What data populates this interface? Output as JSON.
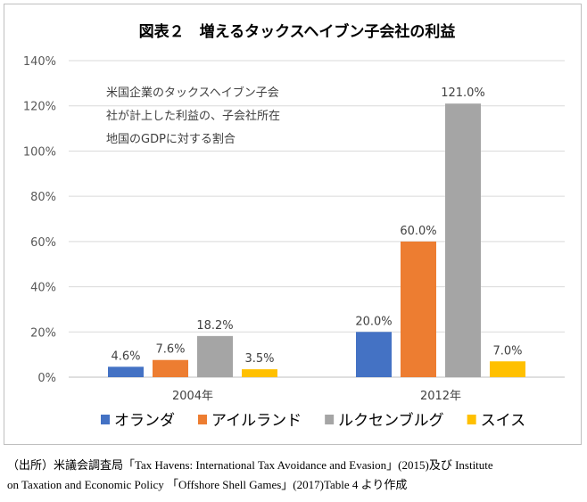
{
  "chart_data": {
    "type": "bar",
    "title": "図表２　増えるタックスヘイブン子会社の利益",
    "annotation": [
      "米国企業のタックスヘイブン子会",
      "社が計上した利益の、子会社所在",
      "地国のGDPに対する割合"
    ],
    "categories": [
      "2004年",
      "2012年"
    ],
    "series": [
      {
        "name": "オランダ",
        "color": "#4472c4",
        "values": [
          4.6,
          20.0
        ],
        "labels": [
          "4.6%",
          "20.0%"
        ]
      },
      {
        "name": "アイルランド",
        "color": "#ed7d31",
        "values": [
          7.6,
          60.0
        ],
        "labels": [
          "7.6%",
          "60.0%"
        ]
      },
      {
        "name": "ルクセンブルグ",
        "color": "#a5a5a5",
        "values": [
          18.2,
          121.0
        ],
        "labels": [
          "18.2%",
          "121.0%"
        ]
      },
      {
        "name": "スイス",
        "color": "#ffc000",
        "values": [
          3.5,
          7.0
        ],
        "labels": [
          "3.5%",
          "7.0%"
        ]
      }
    ],
    "y_ticks": [
      "0%",
      "20%",
      "40%",
      "60%",
      "80%",
      "100%",
      "120%",
      "140%"
    ],
    "ylim": [
      0,
      140
    ],
    "grid": true,
    "legend_position": "bottom"
  },
  "source": {
    "line1": "（出所）米議会調査局「Tax Havens: International Tax Avoidance and Evasion」(2015)及び Institute",
    "line2": "on Taxation and Economic Policy 「Offshore Shell Games」(2017)Table 4 より作成"
  }
}
